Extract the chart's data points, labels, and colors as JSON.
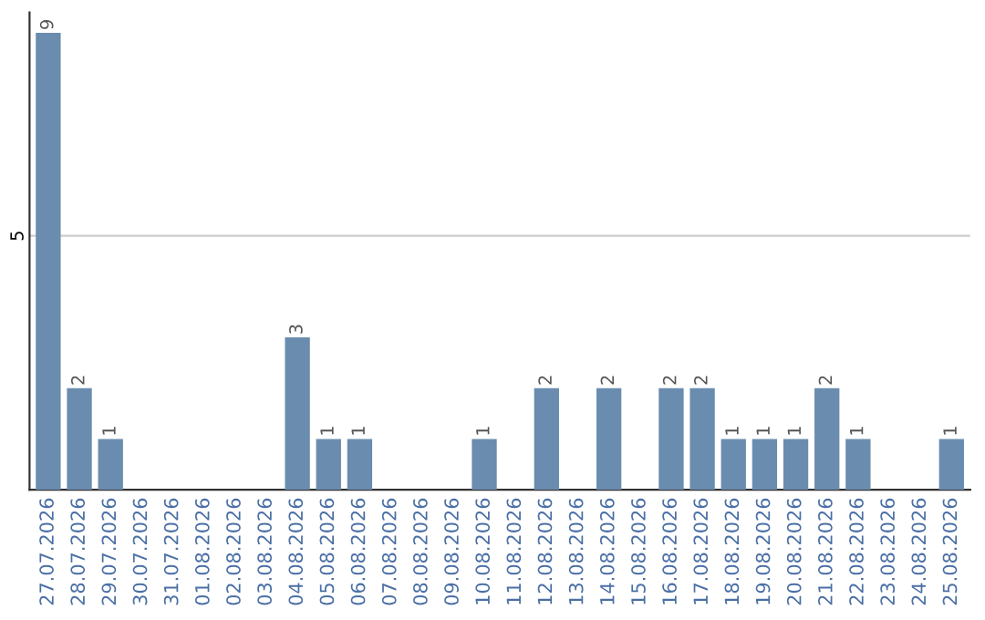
{
  "chart_data": {
    "type": "bar",
    "categories": [
      "27.07.2026",
      "28.07.2026",
      "29.07.2026",
      "30.07.2026",
      "31.07.2026",
      "01.08.2026",
      "02.08.2026",
      "03.08.2026",
      "04.08.2026",
      "05.08.2026",
      "06.08.2026",
      "07.08.2026",
      "08.08.2026",
      "09.08.2026",
      "10.08.2026",
      "11.08.2026",
      "12.08.2026",
      "13.08.2026",
      "14.08.2026",
      "15.08.2026",
      "16.08.2026",
      "17.08.2026",
      "18.08.2026",
      "19.08.2026",
      "20.08.2026",
      "21.08.2026",
      "22.08.2026",
      "23.08.2026",
      "24.08.2026",
      "25.08.2026"
    ],
    "values": [
      9,
      2,
      1,
      0,
      0,
      0,
      0,
      0,
      3,
      1,
      1,
      0,
      0,
      0,
      1,
      0,
      2,
      0,
      2,
      0,
      2,
      2,
      1,
      1,
      1,
      2,
      1,
      0,
      0,
      1
    ],
    "value_labels": [
      "9",
      "2",
      "1",
      null,
      null,
      null,
      null,
      null,
      "3",
      "1",
      "1",
      null,
      null,
      null,
      "1",
      null,
      "2",
      null,
      "2",
      null,
      "2",
      "2",
      "1",
      "1",
      "1",
      "2",
      "1",
      null,
      null,
      "1"
    ],
    "color": "#6a8caf",
    "ylim": [
      0,
      9.4
    ],
    "yticks": [
      5
    ],
    "grid": "y",
    "legend": false
  }
}
